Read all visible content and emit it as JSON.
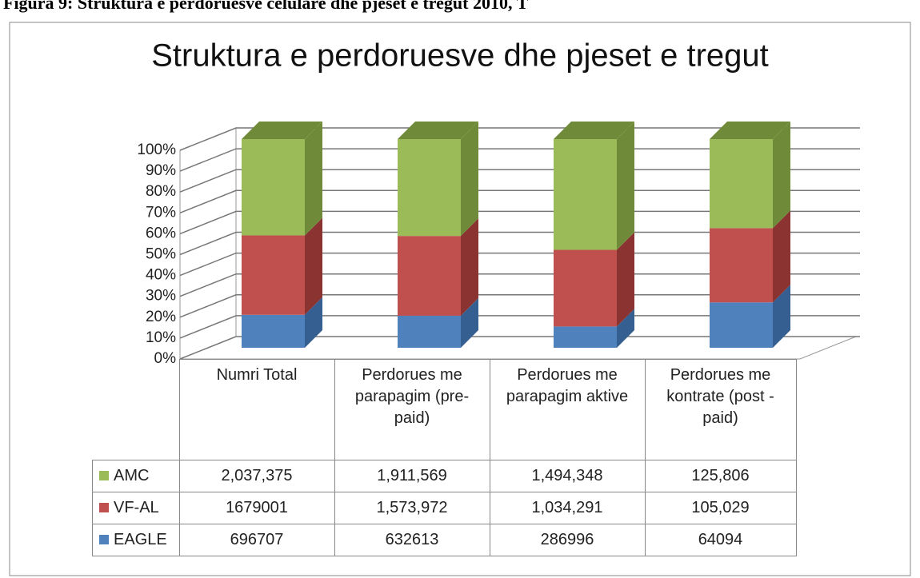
{
  "caption": "Figura 9: Struktura e perdoruesve celulare dhe pjeset e tregut 2010, T",
  "chart_data": {
    "type": "bar3d_stacked100",
    "title": "Struktura e perdoruesve dhe pjeset e tregut",
    "categories": [
      "Numri Total",
      "Perdorues me parapagim (pre-paid)",
      "Perdorues me parapagim aktive",
      "Perdorues me kontrate (post - paid)"
    ],
    "series": [
      {
        "name": "AMC",
        "color": "#9bbb59",
        "side_color": "#6f8b3a",
        "values": [
          2037375,
          1911569,
          1494348,
          125806
        ],
        "value_labels": [
          "2,037,375",
          "1,911,569",
          "1,494,348",
          "125,806"
        ]
      },
      {
        "name": "VF-AL",
        "color": "#c0504d",
        "side_color": "#8a3331",
        "values": [
          1679001,
          1573972,
          1034291,
          105029
        ],
        "value_labels": [
          "1679001",
          "1,573,972",
          "1,034,291",
          "105,029"
        ]
      },
      {
        "name": "EAGLE",
        "color": "#4f81bd",
        "side_color": "#355f91",
        "values": [
          696707,
          632613,
          286996,
          64094
        ],
        "value_labels": [
          "696707",
          "632613",
          "286996",
          "64094"
        ]
      }
    ],
    "ylim": [
      0,
      100
    ],
    "yticks": [
      {
        "value": 0,
        "label": "0%"
      },
      {
        "value": 10,
        "label": "10%"
      },
      {
        "value": 20,
        "label": "20%"
      },
      {
        "value": 30,
        "label": "30%"
      },
      {
        "value": 40,
        "label": "40%"
      },
      {
        "value": 50,
        "label": "50%"
      },
      {
        "value": 60,
        "label": "60%"
      },
      {
        "value": 70,
        "label": "70%"
      },
      {
        "value": 80,
        "label": "80%"
      },
      {
        "value": 90,
        "label": "90%"
      },
      {
        "value": 100,
        "label": "100%"
      }
    ],
    "grid": true
  }
}
